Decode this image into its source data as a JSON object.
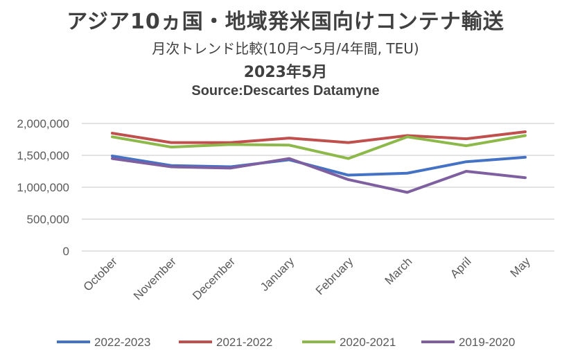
{
  "chart_data": {
    "type": "line",
    "title": "アジア10ヵ国・地域発米国向けコンテナ輸送",
    "subtitle": "月次トレンド比較(10月〜5月/4年間, TEU)",
    "date_label": "2023年5月",
    "source": "Source:Descartes Datamyne",
    "xlabel": "",
    "ylabel": "",
    "ylim": [
      0,
      2000000
    ],
    "yticks": [
      "0",
      "500,000",
      "1,000,000",
      "1,500,000",
      "2,000,000"
    ],
    "ytick_values": [
      0,
      500000,
      1000000,
      1500000,
      2000000
    ],
    "grid": true,
    "legend_position": "bottom",
    "categories": [
      "October",
      "November",
      "December",
      "January",
      "February",
      "March",
      "April",
      "May"
    ],
    "series": [
      {
        "name": "2022-2023",
        "color": "#4472C4",
        "values": [
          1490000,
          1340000,
          1320000,
          1430000,
          1190000,
          1220000,
          1400000,
          1470000
        ]
      },
      {
        "name": "2021-2022",
        "color": "#C0504D",
        "values": [
          1847000,
          1700000,
          1700000,
          1770000,
          1700000,
          1810000,
          1760000,
          1870000
        ]
      },
      {
        "name": "2020-2021",
        "color": "#8DB84A",
        "values": [
          1790000,
          1630000,
          1670000,
          1660000,
          1450000,
          1790000,
          1650000,
          1810000
        ]
      },
      {
        "name": "2019-2020",
        "color": "#7E60A0",
        "values": [
          1450000,
          1320000,
          1300000,
          1450000,
          1120000,
          920000,
          1250000,
          1150000
        ]
      }
    ]
  }
}
